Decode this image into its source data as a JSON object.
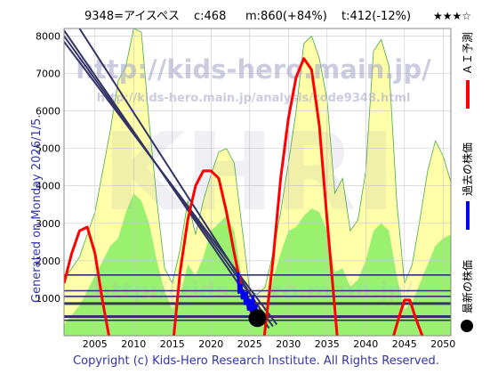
{
  "header": {
    "code_name": "9348=アイスペス",
    "current": "c:468",
    "max_target": "m:860(+84%)",
    "min_target": "t:412(-12%)",
    "stars": "★★★☆"
  },
  "watermark": {
    "url_large": "http://kids-hero.main.jp/",
    "url_small": "http://kids-hero.main.jp/analysis/code9348.html",
    "logo": "KHRI"
  },
  "side_label": "Generated on Monday 2026/1/5.",
  "legend": {
    "ai_forecast": "ＡＩ予測",
    "past_price": "過去の株価",
    "latest_price": "最新の株価"
  },
  "copyright": "Copyright (c) Kids-Hero Research Institute. All Rights Reserved.",
  "colors": {
    "forecast_red": "#ff0000",
    "past_blue": "#0000ee",
    "latest_black": "#000000",
    "band_green": "#88ee66",
    "band_yellow": "#ffffaa",
    "grid_line": "#c8c8c8",
    "support_line": "#333366",
    "trend_line": "#333366",
    "plot_bg": "#ffffff",
    "text_navy": "#3333aa"
  },
  "chart_data": {
    "type": "line",
    "xlim": [
      2001,
      2051
    ],
    "ylim": [
      0,
      8200
    ],
    "x_ticks": [
      2005,
      2010,
      2015,
      2020,
      2025,
      2030,
      2035,
      2040,
      2045,
      2050
    ],
    "y_ticks": [
      1000,
      2000,
      3000,
      4000,
      5000,
      6000,
      7000,
      8000
    ],
    "grid": true,
    "envelope_upper": {
      "x": [
        2001,
        2003,
        2005,
        2007,
        2008,
        2009,
        2010,
        2011,
        2012,
        2013,
        2014,
        2015,
        2016,
        2017,
        2018,
        2019,
        2020,
        2021,
        2022,
        2023,
        2024,
        2025,
        2026,
        2027,
        2028,
        2029,
        2030,
        2031,
        2032,
        2033,
        2034,
        2035,
        2036,
        2037,
        2038,
        2039,
        2040,
        2041,
        2042,
        2043,
        2044,
        2045,
        2046,
        2047,
        2048,
        2049,
        2050,
        2051
      ],
      "y": [
        1500,
        2100,
        3300,
        5500,
        6800,
        7200,
        8200,
        8100,
        5700,
        3600,
        1800,
        1400,
        2300,
        3600,
        2700,
        3600,
        4300,
        4900,
        5000,
        4600,
        2900,
        1200,
        1100,
        1300,
        2200,
        3300,
        4600,
        6000,
        7800,
        8000,
        7400,
        6300,
        3800,
        4200,
        2800,
        3100,
        4400,
        7600,
        7900,
        7200,
        3600,
        1400,
        1900,
        3100,
        4400,
        5200,
        4800,
        4100
      ]
    },
    "envelope_lower": {
      "x": [
        2001,
        2003,
        2005,
        2007,
        2008,
        2009,
        2010,
        2011,
        2012,
        2013,
        2014,
        2015,
        2016,
        2017,
        2018,
        2019,
        2020,
        2021,
        2022,
        2023,
        2024,
        2025,
        2026,
        2027,
        2028,
        2029,
        2030,
        2031,
        2032,
        2033,
        2034,
        2035,
        2036,
        2037,
        2038,
        2039,
        2040,
        2041,
        2042,
        2043,
        2044,
        2045,
        2046,
        2047,
        2048,
        2049,
        2050,
        2051
      ],
      "y": [
        300,
        800,
        1600,
        2400,
        2600,
        3300,
        3800,
        3600,
        3000,
        2000,
        1200,
        700,
        1100,
        1900,
        1600,
        2100,
        2800,
        3000,
        3200,
        2800,
        1500,
        600,
        500,
        800,
        1500,
        2200,
        2800,
        2900,
        3200,
        3400,
        3300,
        2800,
        1700,
        1800,
        1300,
        1500,
        2000,
        2800,
        3000,
        2800,
        1600,
        700,
        900,
        1400,
        1900,
        2400,
        2600,
        2700
      ]
    },
    "trend_lines": [
      {
        "x": [
          2001,
          2027.5
        ],
        "y": [
          8150,
          200
        ]
      },
      {
        "x": [
          2001,
          2028
        ],
        "y": [
          8000,
          250
        ]
      },
      {
        "x": [
          2001,
          2028.5
        ],
        "y": [
          7850,
          300
        ]
      },
      {
        "x": [
          2003,
          2027
        ],
        "y": [
          8200,
          500
        ]
      }
    ],
    "support_levels": [
      1620,
      1200,
      1050,
      860,
      510,
      412
    ],
    "series": [
      {
        "name": "ＡＩ予測",
        "segments": [
          {
            "x": [
              2001,
              2002,
              2003,
              2004,
              2005,
              2006,
              2006.8
            ],
            "y": [
              1400,
              2200,
              2800,
              2900,
              2200,
              900,
              0
            ]
          },
          {
            "x": [
              2015.2,
              2016,
              2017,
              2018,
              2019,
              2020,
              2021,
              2022,
              2023,
              2024,
              2025,
              2025.6
            ],
            "y": [
              0,
              1700,
              3100,
              4000,
              4400,
              4400,
              4200,
              3300,
              2200,
              1200,
              700,
              500
            ]
          },
          {
            "x": [
              2026.9,
              2028,
              2029,
              2030,
              2031,
              2032,
              2033,
              2034,
              2035,
              2036.3
            ],
            "y": [
              0,
              2000,
              4200,
              5800,
              6900,
              7400,
              7100,
              5600,
              3100,
              0
            ]
          },
          {
            "x": [
              2043.6,
              2044.3,
              2045,
              2045.7,
              2046.4,
              2047.3
            ],
            "y": [
              0,
              500,
              950,
              950,
              500,
              0
            ]
          }
        ]
      },
      {
        "name": "過去の株価",
        "x": [
          2023.5,
          2023.6,
          2023.9,
          2024.0,
          2024.2,
          2024.4,
          2024.6,
          2024.8,
          2025.0,
          2025.2,
          2025.4,
          2025.6,
          2025.8,
          2026.0
        ],
        "y": [
          1700,
          1150,
          1350,
          1000,
          1200,
          850,
          1150,
          700,
          950,
          650,
          1050,
          600,
          800,
          500
        ]
      }
    ],
    "latest_point": {
      "x": 2026.0,
      "y": 468
    }
  }
}
